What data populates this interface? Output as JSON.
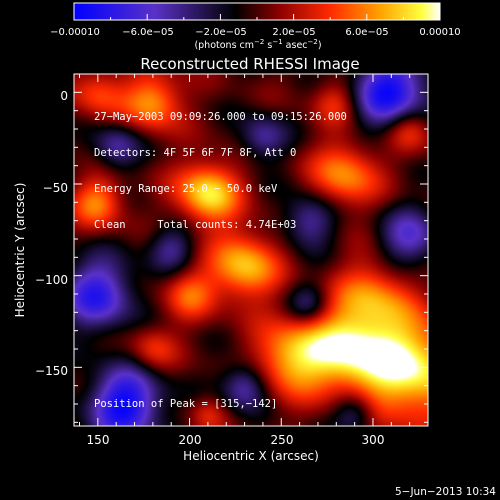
{
  "colorbar": {
    "tick_labels": [
      "−0.00010",
      "−6.0e−05",
      "−2.0e−05",
      "2.0e−05",
      "6.0e−05",
      "0.00010"
    ],
    "range": [
      -0.0001,
      0.0001
    ],
    "units": "(photons cm",
    "units_sup1": "−2",
    "units_mid": " s",
    "units_sup2": "−1",
    "units_mid2": " asec",
    "units_sup3": "−2",
    "units_end": ")"
  },
  "overlay": {
    "line1": "27−May−2003 09:09:26.000 to 09:15:26.000",
    "line2": "Detectors: 4F 5F 6F 7F 8F, Att 0",
    "line3": "Energy Range: 25.0 − 50.0 keV",
    "line4": "Clean     Total counts: 4.74E+03",
    "peak": "Position of Peak = [315,−142]"
  },
  "footer": {
    "date": "5−Jun−2013 10:34"
  },
  "colors": {
    "background": "#000000",
    "text": "#ffffff"
  },
  "chart_data": {
    "type": "heatmap",
    "title": "Reconstructed RHESSI Image",
    "xlabel": "Heliocentric X (arcsec)",
    "ylabel": "Heliocentric Y (arcsec)",
    "xlim": [
      137,
      330
    ],
    "ylim": [
      -182,
      10
    ],
    "x_ticks": [
      150,
      200,
      250,
      300
    ],
    "y_ticks": [
      0,
      -50,
      -100,
      -150
    ],
    "x_tick_labels": [
      "150",
      "200",
      "250",
      "300"
    ],
    "y_tick_labels": [
      "0",
      "−50",
      "−100",
      "−150"
    ],
    "peak": [
      315,
      -142
    ],
    "colormap": [
      "#0000ff",
      "#5a31c8",
      "#000000",
      "#8b0000",
      "#ff2a00",
      "#ffa500",
      "#ffff40",
      "#ffffff"
    ],
    "blobs": [
      {
        "x": 320,
        "y": -150,
        "sigma": 20,
        "a": 1.0
      },
      {
        "x": 285,
        "y": -140,
        "sigma": 16,
        "a": 0.85
      },
      {
        "x": 255,
        "y": -145,
        "sigma": 14,
        "a": 0.75
      },
      {
        "x": 300,
        "y": -110,
        "sigma": 14,
        "a": 0.55
      },
      {
        "x": 210,
        "y": -55,
        "sigma": 12,
        "a": 0.9
      },
      {
        "x": 230,
        "y": -95,
        "sigma": 13,
        "a": 0.8
      },
      {
        "x": 200,
        "y": -110,
        "sigma": 10,
        "a": 0.5
      },
      {
        "x": 180,
        "y": -5,
        "sigma": 11,
        "a": 0.7
      },
      {
        "x": 150,
        "y": -60,
        "sigma": 10,
        "a": 0.6
      },
      {
        "x": 150,
        "y": 0,
        "sigma": 10,
        "a": 0.45
      },
      {
        "x": 285,
        "y": -45,
        "sigma": 13,
        "a": 0.65
      },
      {
        "x": 320,
        "y": -20,
        "sigma": 9,
        "a": 0.5
      },
      {
        "x": 280,
        "y": -5,
        "sigma": 9,
        "a": 0.4
      },
      {
        "x": 180,
        "y": -140,
        "sigma": 9,
        "a": 0.4
      },
      {
        "x": 210,
        "y": -175,
        "sigma": 7,
        "a": 0.3
      },
      {
        "x": 310,
        "y": 0,
        "sigma": 15,
        "a": -0.95
      },
      {
        "x": 165,
        "y": -170,
        "sigma": 14,
        "a": -1.0
      },
      {
        "x": 150,
        "y": -110,
        "sigma": 14,
        "a": -0.8
      },
      {
        "x": 160,
        "y": -30,
        "sigma": 9,
        "a": -0.5
      },
      {
        "x": 265,
        "y": -70,
        "sigma": 10,
        "a": -0.55
      },
      {
        "x": 320,
        "y": -80,
        "sigma": 12,
        "a": -0.6
      },
      {
        "x": 240,
        "y": -25,
        "sigma": 9,
        "a": -0.5
      },
      {
        "x": 230,
        "y": -160,
        "sigma": 9,
        "a": -0.6
      },
      {
        "x": 190,
        "y": -85,
        "sigma": 9,
        "a": -0.45
      },
      {
        "x": 265,
        "y": -115,
        "sigma": 8,
        "a": -0.4
      },
      {
        "x": 290,
        "y": -175,
        "sigma": 8,
        "a": -0.5
      }
    ]
  }
}
